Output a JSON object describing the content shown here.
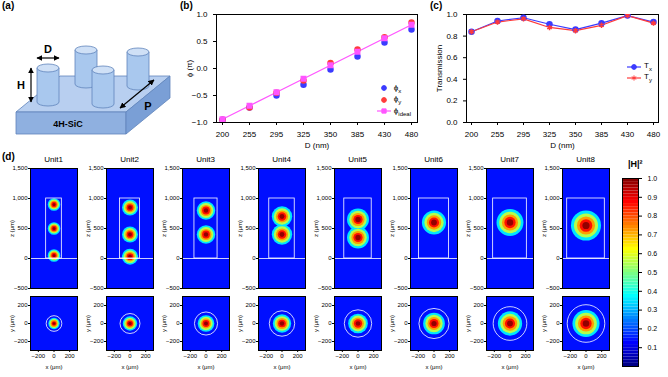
{
  "panels": [
    "(a)",
    "(b)",
    "(c)",
    "(d)"
  ],
  "schematic": {
    "diameter": "D",
    "height": "H",
    "period": "P",
    "substrate": "4H-SiC"
  },
  "chart_data": [
    {
      "type": "line",
      "xlabel": "D (nm)",
      "ylabel": "ϕ (π)",
      "categories": [
        200,
        255,
        295,
        325,
        350,
        385,
        430,
        480
      ],
      "ylim": [
        -1,
        1
      ],
      "yticks": [
        -1,
        -0.5,
        0,
        0.5,
        1
      ],
      "legend": "lower right",
      "series": [
        {
          "name": "ϕx",
          "type": "scatter",
          "marker": "circle",
          "color": "#3b3bff",
          "values": [
            -0.95,
            -0.72,
            -0.5,
            -0.3,
            -0.02,
            0.22,
            0.48,
            0.72
          ]
        },
        {
          "name": "ϕy",
          "type": "scatter",
          "marker": "circle",
          "color": "#ff3b3b",
          "values": [
            -0.95,
            -0.72,
            -0.45,
            -0.22,
            0.1,
            0.35,
            0.58,
            0.85
          ]
        },
        {
          "name": "ϕideal",
          "type": "line",
          "marker": "square",
          "color": "#ff55ff",
          "values": [
            -0.94,
            -0.69,
            -0.44,
            -0.19,
            0.06,
            0.31,
            0.56,
            0.81
          ]
        }
      ]
    },
    {
      "type": "line",
      "xlabel": "D (nm)",
      "ylabel": "Transmission",
      "categories": [
        200,
        255,
        295,
        325,
        350,
        385,
        430,
        480
      ],
      "ylim": [
        0,
        1
      ],
      "yticks": [
        0,
        0.2,
        0.4,
        0.6,
        0.8,
        1
      ],
      "legend": "right",
      "series": [
        {
          "name": "Tx",
          "marker": "circle",
          "color": "#3b3bff",
          "values": [
            0.84,
            0.94,
            0.97,
            0.91,
            0.86,
            0.92,
            0.99,
            0.93
          ]
        },
        {
          "name": "Ty",
          "marker": "asterisk",
          "color": "#ff3b3b",
          "values": [
            0.84,
            0.93,
            0.96,
            0.88,
            0.85,
            0.9,
            0.99,
            0.92
          ]
        }
      ]
    }
  ],
  "field_maps": {
    "pillar_height": 1000,
    "substrate_z": 0,
    "units": [
      {
        "name": "Unit1",
        "pillar_diameter": 200,
        "hotspots_z": [
          900,
          500,
          50
        ]
      },
      {
        "name": "Unit2",
        "pillar_diameter": 255,
        "hotspots_z": [
          850,
          400,
          30
        ]
      },
      {
        "name": "Unit3",
        "pillar_diameter": 295,
        "hotspots_z": [
          800,
          400
        ]
      },
      {
        "name": "Unit4",
        "pillar_diameter": 325,
        "hotspots_z": [
          700,
          400
        ]
      },
      {
        "name": "Unit5",
        "pillar_diameter": 350,
        "hotspots_z": [
          650,
          350
        ]
      },
      {
        "name": "Unit6",
        "pillar_diameter": 385,
        "hotspots_z": [
          600
        ]
      },
      {
        "name": "Unit7",
        "pillar_diameter": 430,
        "hotspots_z": [
          600
        ]
      },
      {
        "name": "Unit8",
        "pillar_diameter": 480,
        "hotspots_z": [
          550
        ]
      }
    ],
    "xz": {
      "ylabel": "z (μm)",
      "xlim": [
        -300,
        300
      ],
      "ylim": [
        -500,
        1500
      ],
      "yticks": [
        -500,
        0,
        500,
        1000,
        1500
      ],
      "tick_labels": "y"
    },
    "xy": {
      "xlabel": "x (μm)",
      "ylabel": "y (μm)",
      "xlim": [
        -300,
        300
      ],
      "ylim": [
        -300,
        300
      ],
      "xticks": [
        -200,
        0,
        200
      ],
      "yticks": [
        -200,
        0,
        200
      ],
      "center": [
        0,
        0
      ]
    },
    "colorbar": {
      "label": "|H|²",
      "lim": [
        0,
        1
      ],
      "ticks": [
        0.1,
        0.2,
        0.3,
        0.4,
        0.5,
        0.6,
        0.7,
        0.8,
        0.9,
        1
      ]
    }
  }
}
